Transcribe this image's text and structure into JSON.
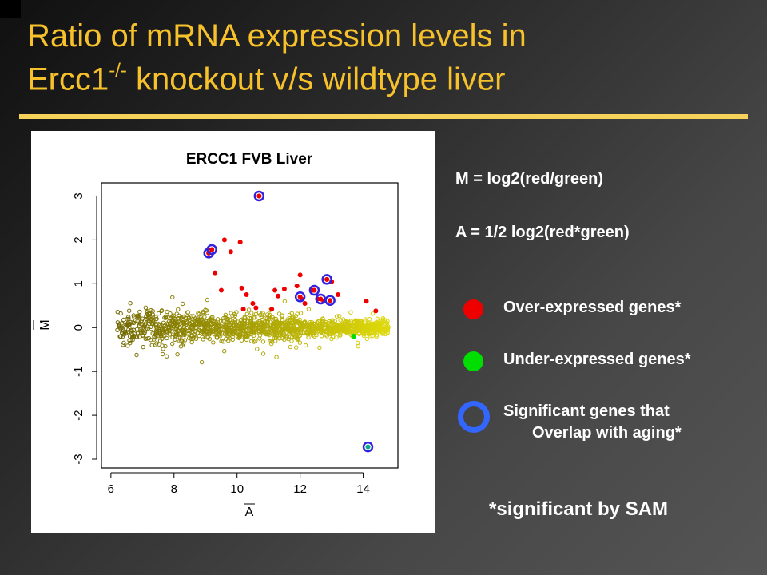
{
  "slide": {
    "title_line1": "Ratio of mRNA expression levels in",
    "title_line2_pre": "Ercc1",
    "title_line2_sup": "-/-",
    "title_line2_post": " knockout v/s wildtype liver",
    "definition_m": "M = log2(red/green)",
    "definition_a": "A = 1/2 log2(red*green)",
    "footnote": "*significant by SAM"
  },
  "legend": [
    {
      "label": "Over-expressed genes*",
      "color": "#ee0000",
      "icon": "red-dot-icon"
    },
    {
      "label": "Under-expressed genes*",
      "color": "#00dd00",
      "icon": "green-dot-icon"
    },
    {
      "label_line1": "Significant genes that",
      "label_line2": "Overlap with aging*",
      "color": "#3366ff",
      "icon": "blue-ring-icon"
    }
  ],
  "colors": {
    "title": "#f6c12b",
    "background_cell": "#7a7a00",
    "over_expressed": "#ee0000",
    "under_expressed": "#00dd00",
    "overlap_aging_ring": "#3322dd"
  },
  "chart_data": {
    "type": "scatter",
    "title": "ERCC1 FVB Liver",
    "xlabel": "A",
    "ylabel": "M",
    "xlim": [
      5.7,
      15.1
    ],
    "ylim": [
      -3.2,
      3.3
    ],
    "xticks": [
      6,
      8,
      10,
      12,
      14
    ],
    "yticks": [
      -3,
      -2,
      -1,
      0,
      1,
      2,
      3
    ],
    "grid": false,
    "background_cloud": {
      "description": "dense cloud of non-significant genes centered near M=0",
      "x_range": [
        6.2,
        14.8
      ],
      "note": "olive to yellow open circles"
    },
    "over_expressed": [
      {
        "x": 9.1,
        "y": 1.7
      },
      {
        "x": 9.2,
        "y": 1.78
      },
      {
        "x": 9.6,
        "y": 2.0
      },
      {
        "x": 10.1,
        "y": 1.95
      },
      {
        "x": 9.8,
        "y": 1.73
      },
      {
        "x": 10.7,
        "y": 3.0
      },
      {
        "x": 9.3,
        "y": 1.25
      },
      {
        "x": 10.15,
        "y": 0.9
      },
      {
        "x": 10.3,
        "y": 0.75
      },
      {
        "x": 10.5,
        "y": 0.55
      },
      {
        "x": 10.6,
        "y": 0.45
      },
      {
        "x": 10.2,
        "y": 0.42
      },
      {
        "x": 11.2,
        "y": 0.85
      },
      {
        "x": 11.5,
        "y": 0.88
      },
      {
        "x": 11.3,
        "y": 0.72
      },
      {
        "x": 11.1,
        "y": 0.42
      },
      {
        "x": 11.9,
        "y": 0.95
      },
      {
        "x": 12.0,
        "y": 1.2
      },
      {
        "x": 12.05,
        "y": 0.65
      },
      {
        "x": 12.15,
        "y": 0.55
      },
      {
        "x": 12.4,
        "y": 0.85
      },
      {
        "x": 12.55,
        "y": 0.65
      },
      {
        "x": 12.85,
        "y": 1.1
      },
      {
        "x": 13.0,
        "y": 1.05
      },
      {
        "x": 12.75,
        "y": 0.6
      },
      {
        "x": 13.2,
        "y": 0.75
      },
      {
        "x": 14.1,
        "y": 0.6
      },
      {
        "x": 14.4,
        "y": 0.38
      },
      {
        "x": 9.5,
        "y": 0.85
      }
    ],
    "under_expressed": [
      {
        "x": 13.7,
        "y": -0.2
      }
    ],
    "overlap_with_aging": [
      {
        "x": 10.7,
        "y": 3.0,
        "fill": "over"
      },
      {
        "x": 9.1,
        "y": 1.7,
        "fill": "over"
      },
      {
        "x": 9.2,
        "y": 1.78,
        "fill": "over"
      },
      {
        "x": 12.0,
        "y": 0.7,
        "fill": "over"
      },
      {
        "x": 12.45,
        "y": 0.85,
        "fill": "over"
      },
      {
        "x": 12.85,
        "y": 1.1,
        "fill": "over"
      },
      {
        "x": 12.65,
        "y": 0.65,
        "fill": "over"
      },
      {
        "x": 12.95,
        "y": 0.62,
        "fill": "over"
      },
      {
        "x": 14.15,
        "y": -2.72,
        "fill": "under"
      }
    ]
  }
}
